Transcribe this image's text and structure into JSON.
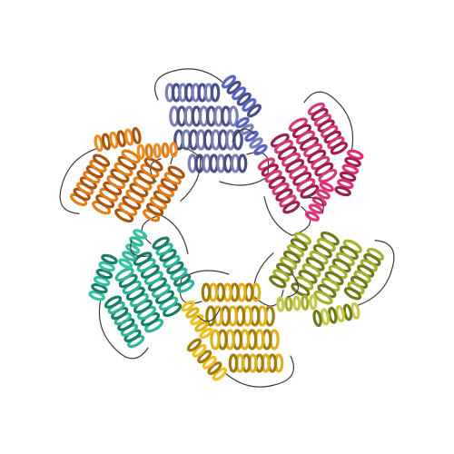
{
  "image": {
    "background": "#ffffff",
    "subject": "protein-ribbon-hexamer"
  },
  "subunits": [
    {
      "color": "#7a7fb8",
      "shade": "#4b4f86",
      "accent": "#5a63c9"
    },
    {
      "color": "#d23a78",
      "shade": "#9c1f52",
      "accent": "#e0317a"
    },
    {
      "color": "#a8b030",
      "shade": "#6f7a1c",
      "accent": "#c8c84a"
    },
    {
      "color": "#e0b018",
      "shade": "#a37b0d",
      "accent": "#f0c020"
    },
    {
      "color": "#2fb59a",
      "shade": "#1a7d69",
      "accent": "#36c2a5"
    },
    {
      "color": "#e0801c",
      "shade": "#a85510",
      "accent": "#f08a22"
    }
  ]
}
